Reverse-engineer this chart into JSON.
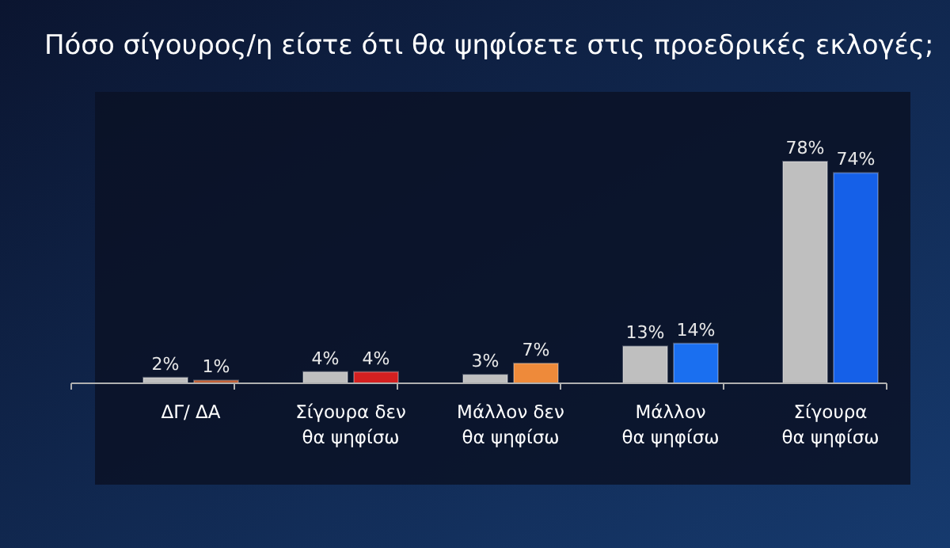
{
  "chart_data": {
    "type": "bar",
    "title": "Πόσο σίγουρος/η είστε ότι θα ψηφίσετε στις προεδρικές εκλογές;",
    "categories": [
      "ΔΓ/ ΔΑ",
      "Σίγουρα δεν θα ψηφίσω",
      "Μάλλον δεν θα ψηφίσω",
      "Μάλλον θα ψηφίσω",
      "Σίγουρα θα ψηφίσω"
    ],
    "series": [
      {
        "color": "#bfbfbf",
        "values": [
          2,
          4,
          3,
          13,
          78
        ],
        "value_labels": [
          "2%",
          "4%",
          "3%",
          "13%",
          "78%"
        ]
      },
      {
        "colors": [
          "#c0562a",
          "#d42020",
          "#ee8a3a",
          "#1a6ff0",
          "#1560e8"
        ],
        "values": [
          1,
          4,
          7,
          14,
          74
        ],
        "value_labels": [
          "1%",
          "4%",
          "7%",
          "14%",
          "74%"
        ]
      }
    ]
  }
}
